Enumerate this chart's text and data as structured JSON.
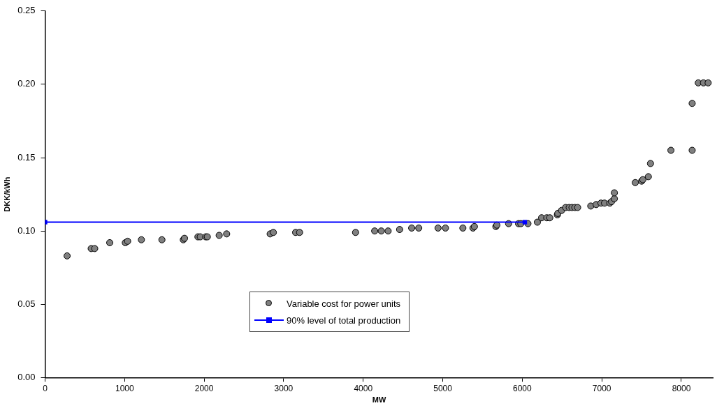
{
  "chart_data": {
    "type": "scatter",
    "xlabel": "MW",
    "ylabel": "DKK/kWh",
    "xlim": [
      0,
      8400
    ],
    "xticks": [
      0,
      1000,
      2000,
      3000,
      4000,
      5000,
      6000,
      7000,
      8000
    ],
    "ylim": [
      0,
      0.25
    ],
    "yticks": [
      {
        "value": 0,
        "label": "0.00"
      },
      {
        "value": 0.05,
        "label": "0.05"
      },
      {
        "value": 0.1,
        "label": "0.10"
      },
      {
        "value": 0.15,
        "label": "0.15"
      },
      {
        "value": 0.2,
        "label": "0.20"
      },
      {
        "value": 0.25,
        "label": "0.25"
      }
    ],
    "grid": false,
    "legend": "bottom",
    "series": [
      {
        "name": "Variable cost for power units",
        "type": "scatter",
        "marker": "circle",
        "color": "#808080",
        "x": [
          277,
          580,
          624,
          813,
          1009,
          1038,
          1211,
          1469,
          1738,
          1753,
          1922,
          1951,
          2020,
          2040,
          2189,
          2283,
          2830,
          2870,
          3150,
          3200,
          3904,
          4144,
          4227,
          4313,
          4458,
          4609,
          4698,
          4941,
          5034,
          5253,
          5380,
          5398,
          5668,
          5680,
          5828,
          5953,
          5982,
          6071,
          6190,
          6243,
          6308,
          6346,
          6441,
          6447,
          6494,
          6545,
          6590,
          6625,
          6661,
          6696,
          6861,
          6929,
          6989,
          7034,
          7101,
          7122,
          7158,
          7158,
          7421,
          7501,
          7516,
          7585,
          7612,
          7869,
          8136,
          8136,
          8213,
          8278,
          8337
        ],
        "values": [
          0.083,
          0.088,
          0.088,
          0.092,
          0.092,
          0.093,
          0.094,
          0.094,
          0.094,
          0.095,
          0.096,
          0.096,
          0.096,
          0.096,
          0.097,
          0.098,
          0.098,
          0.099,
          0.099,
          0.099,
          0.099,
          0.1,
          0.1,
          0.1,
          0.101,
          0.102,
          0.102,
          0.102,
          0.102,
          0.102,
          0.102,
          0.103,
          0.103,
          0.104,
          0.105,
          0.105,
          0.105,
          0.105,
          0.106,
          0.109,
          0.109,
          0.109,
          0.111,
          0.112,
          0.114,
          0.116,
          0.116,
          0.116,
          0.116,
          0.116,
          0.117,
          0.118,
          0.119,
          0.119,
          0.119,
          0.12,
          0.122,
          0.126,
          0.133,
          0.134,
          0.135,
          0.137,
          0.146,
          0.155,
          0.155,
          0.187,
          0.201,
          0.201,
          0.201
        ]
      },
      {
        "name": "90% level of total production",
        "type": "line",
        "marker": "square",
        "line_style": "solid",
        "color": "#0000ff",
        "x": [
          0,
          6032
        ],
        "values": [
          0.106,
          0.106
        ]
      }
    ]
  }
}
